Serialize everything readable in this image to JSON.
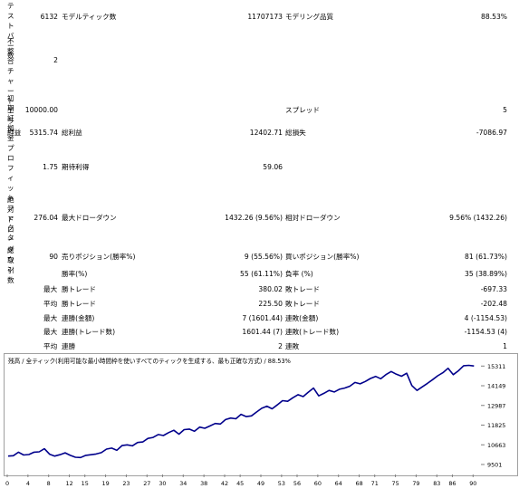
{
  "labels": {
    "test_bars": "テストバー数",
    "mismatch_errors": "不整合チャートエラー",
    "initial_deposit": "初期証拠金",
    "net_profit": "純益",
    "profit_factor": "プロフィットファクタ",
    "abs_drawdown": "絶対ドローダウン",
    "total_trades": "総取引数",
    "modelling_ticks": "モデルティック数",
    "modelling_quality": "モデリング品質",
    "spread": "スプレッド",
    "gross_profit": "総利益",
    "gross_loss": "総損失",
    "expected_payoff": "期待利得",
    "max_drawdown": "最大ドローダウン",
    "rel_drawdown": "相対ドローダウン",
    "short_positions": "売りポジション(勝率%)",
    "long_positions": "買いポジション(勝率%)",
    "profit_trades": "勝率(%)",
    "loss_trades": "負率 (%)",
    "max": "最大",
    "avg": "平均",
    "profit_trade": "勝トレード",
    "loss_trade": "敗トレード",
    "consec_wins_money": "連勝(金額)",
    "consec_losses_money": "連敗(金額)",
    "consec_wins_trades": "連勝(トレード数)",
    "consec_losses_trades": "連敗(トレード数)",
    "avg_consec_wins": "連勝",
    "avg_consec_losses": "連敗"
  },
  "values": {
    "test_bars": "6132",
    "mismatch_errors": "2",
    "initial_deposit": "10000.00",
    "net_profit": "5315.74",
    "profit_factor": "1.75",
    "abs_drawdown": "276.04",
    "total_trades": "90",
    "modelling_ticks": "11707173",
    "modelling_quality": "88.53%",
    "spread": "5",
    "gross_profit": "12402.71",
    "gross_loss": "-7086.97",
    "expected_payoff": "59.06",
    "max_drawdown": "1432.26 (9.56%)",
    "rel_drawdown": "9.56% (1432.26)",
    "short_positions": "9 (55.56%)",
    "long_positions": "81 (61.73%)",
    "profit_trades": "55 (61.11%)",
    "loss_trades": "35 (38.89%)",
    "largest_profit_trade": "380.02",
    "largest_loss_trade": "-697.33",
    "avg_profit_trade": "225.50",
    "avg_loss_trade": "-202.48",
    "max_consec_wins_money": "7 (1601.44)",
    "max_consec_losses_money": "4 (-1154.53)",
    "max_consec_wins_trades": "1601.44 (7)",
    "max_consec_losses_trades": "-1154.53 (4)",
    "avg_consec_wins": "2",
    "avg_consec_losses": "1"
  },
  "chart": {
    "header": "残高 / 全ティック(利用可能な最小時間枠を使いすべてのティックを生成する、最も正確な方式) / 88.53%",
    "line_color": "#00008b"
  },
  "chart_data": {
    "type": "line",
    "x_ticks": [
      0,
      4,
      8,
      12,
      15,
      19,
      23,
      27,
      30,
      34,
      38,
      42,
      45,
      49,
      53,
      56,
      60,
      64,
      68,
      71,
      75,
      79,
      83,
      86,
      90
    ],
    "y_ticks": [
      9501,
      10663,
      11825,
      12987,
      14149,
      15311
    ],
    "ylim": [
      9501,
      15700
    ],
    "xlim": [
      0,
      91
    ],
    "series": [
      {
        "values": [
          [
            0,
            10000
          ],
          [
            1,
            10020
          ],
          [
            2,
            10230
          ],
          [
            3,
            10060
          ],
          [
            4,
            10090
          ],
          [
            5,
            10230
          ],
          [
            6,
            10250
          ],
          [
            7,
            10430
          ],
          [
            8,
            10110
          ],
          [
            9,
            10000
          ],
          [
            10,
            10080
          ],
          [
            11,
            10190
          ],
          [
            12,
            10040
          ],
          [
            13,
            9930
          ],
          [
            14,
            9910
          ],
          [
            15,
            10040
          ],
          [
            16,
            10080
          ],
          [
            17,
            10120
          ],
          [
            18,
            10200
          ],
          [
            19,
            10410
          ],
          [
            20,
            10470
          ],
          [
            21,
            10340
          ],
          [
            22,
            10620
          ],
          [
            23,
            10660
          ],
          [
            24,
            10600
          ],
          [
            25,
            10800
          ],
          [
            26,
            10830
          ],
          [
            27,
            11040
          ],
          [
            28,
            11100
          ],
          [
            29,
            11270
          ],
          [
            30,
            11210
          ],
          [
            31,
            11380
          ],
          [
            32,
            11520
          ],
          [
            33,
            11290
          ],
          [
            34,
            11560
          ],
          [
            35,
            11590
          ],
          [
            36,
            11460
          ],
          [
            37,
            11710
          ],
          [
            38,
            11640
          ],
          [
            39,
            11780
          ],
          [
            40,
            11920
          ],
          [
            41,
            11890
          ],
          [
            42,
            12150
          ],
          [
            43,
            12240
          ],
          [
            44,
            12200
          ],
          [
            45,
            12460
          ],
          [
            46,
            12330
          ],
          [
            47,
            12370
          ],
          [
            48,
            12600
          ],
          [
            49,
            12820
          ],
          [
            50,
            12940
          ],
          [
            51,
            12790
          ],
          [
            52,
            13020
          ],
          [
            53,
            13270
          ],
          [
            54,
            13230
          ],
          [
            55,
            13440
          ],
          [
            56,
            13620
          ],
          [
            57,
            13510
          ],
          [
            58,
            13770
          ],
          [
            59,
            14010
          ],
          [
            60,
            13550
          ],
          [
            61,
            13700
          ],
          [
            62,
            13870
          ],
          [
            63,
            13780
          ],
          [
            64,
            13940
          ],
          [
            65,
            14010
          ],
          [
            66,
            14120
          ],
          [
            67,
            14340
          ],
          [
            68,
            14260
          ],
          [
            69,
            14400
          ],
          [
            70,
            14580
          ],
          [
            71,
            14700
          ],
          [
            72,
            14560
          ],
          [
            73,
            14810
          ],
          [
            74,
            14990
          ],
          [
            75,
            14830
          ],
          [
            76,
            14710
          ],
          [
            77,
            14890
          ],
          [
            78,
            14160
          ],
          [
            79,
            13870
          ],
          [
            80,
            14080
          ],
          [
            81,
            14290
          ],
          [
            82,
            14510
          ],
          [
            83,
            14740
          ],
          [
            84,
            14920
          ],
          [
            85,
            15180
          ],
          [
            86,
            14800
          ],
          [
            87,
            15030
          ],
          [
            88,
            15330
          ],
          [
            89,
            15350
          ],
          [
            90,
            15316
          ]
        ]
      }
    ]
  }
}
